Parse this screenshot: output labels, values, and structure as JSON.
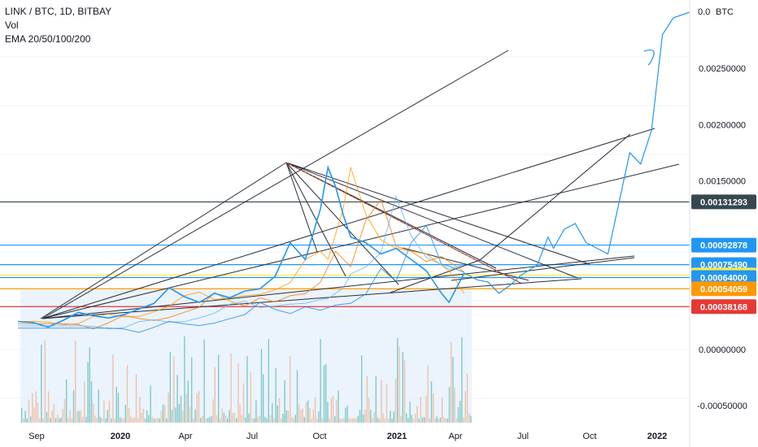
{
  "legend": {
    "symbol": "LINK / BTC, 1D, BITBAY",
    "volume": "Vol",
    "ema": "EMA 20/50/100/200"
  },
  "chart_data": {
    "type": "line",
    "x_ticks": [
      "Sep",
      "2020",
      "Apr",
      "Jul",
      "Oct",
      "2021",
      "Apr",
      "Jul",
      "Oct",
      "2022"
    ],
    "y_ticks": [
      "0.00250000",
      "0.00200000",
      "0.00150000",
      "0.00000000",
      "-0.00050000"
    ],
    "top_label": "0.0",
    "currency": "BTC",
    "ylim": [
      -0.00065,
      0.003
    ],
    "price_levels": [
      {
        "value": 0.00131293,
        "label": "0.00131293",
        "color": "#37474f"
      },
      {
        "value": 0.00092878,
        "label": "0.00092878",
        "color": "#2196f3"
      },
      {
        "value": 0.0007549,
        "label": "0.00075490",
        "color": "#2196f3"
      },
      {
        "value": 0.00066239,
        "label": "0.00066239",
        "color": "#ffeb3b",
        "text_color": "#131722"
      },
      {
        "value": 0.00064,
        "label": "0.00064000",
        "color": "#2196f3"
      },
      {
        "value": 0.00054059,
        "label": "0.00054059",
        "color": "#ff9800"
      },
      {
        "value": 0.00038168,
        "label": "0.00038168",
        "color": "#e53935"
      }
    ],
    "price_series": [
      [
        0,
        0.00025
      ],
      [
        0.02,
        0.00024
      ],
      [
        0.04,
        0.0002
      ],
      [
        0.06,
        0.00026
      ],
      [
        0.08,
        0.00033
      ],
      [
        0.1,
        0.0003
      ],
      [
        0.12,
        0.00028
      ],
      [
        0.14,
        0.00031
      ],
      [
        0.16,
        0.00036
      ],
      [
        0.18,
        0.00041
      ],
      [
        0.2,
        0.00055
      ],
      [
        0.22,
        0.00047
      ],
      [
        0.24,
        0.00042
      ],
      [
        0.26,
        0.0005
      ],
      [
        0.28,
        0.00046
      ],
      [
        0.3,
        0.00052
      ],
      [
        0.32,
        0.00054
      ],
      [
        0.34,
        0.00065
      ],
      [
        0.36,
        0.00095
      ],
      [
        0.38,
        0.0008
      ],
      [
        0.4,
        0.00125
      ],
      [
        0.41,
        0.00162
      ],
      [
        0.42,
        0.00145
      ],
      [
        0.43,
        0.0012
      ],
      [
        0.44,
        0.001
      ],
      [
        0.46,
        0.00095
      ],
      [
        0.48,
        0.00085
      ],
      [
        0.5,
        0.0009
      ],
      [
        0.52,
        0.0008
      ],
      [
        0.54,
        0.0007
      ],
      [
        0.56,
        0.0005
      ],
      [
        0.57,
        0.00042
      ],
      [
        0.59,
        0.00068
      ],
      [
        0.61,
        0.00062
      ],
      [
        0.63,
        0.0006
      ],
      [
        0.65,
        0.0005
      ],
      [
        0.67,
        0.00057
      ],
      [
        0.69,
        0.00066
      ],
      [
        0.72,
        0.00075
      ],
      [
        0.74,
        0.001
      ],
      [
        0.75,
        0.0009
      ],
      [
        0.77,
        0.00107
      ],
      [
        0.79,
        0.00112
      ],
      [
        0.81,
        0.00095
      ],
      [
        0.83,
        0.0009
      ],
      [
        0.85,
        0.00085
      ],
      [
        0.87,
        0.0013
      ],
      [
        0.89,
        0.00175
      ],
      [
        0.91,
        0.00165
      ],
      [
        0.93,
        0.00195
      ],
      [
        0.95,
        0.0028
      ],
      [
        0.97,
        0.00295
      ],
      [
        1.0,
        0.003
      ]
    ]
  }
}
